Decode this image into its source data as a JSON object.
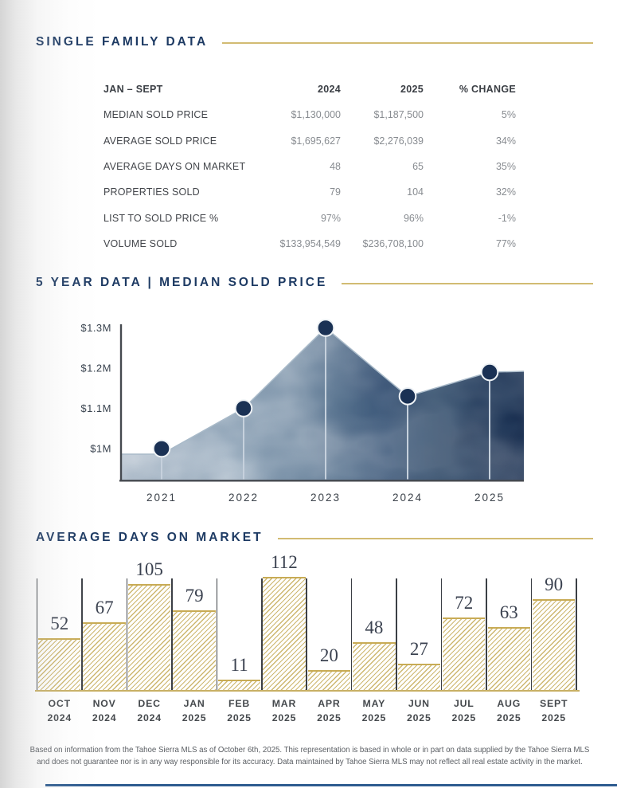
{
  "report": {
    "sections": [
      {
        "id": "single_family",
        "title": "SINGLE FAMILY DATA"
      },
      {
        "id": "five_year",
        "title": "5 YEAR DATA | MEDIAN SOLD PRICE"
      },
      {
        "id": "days_on_market",
        "title": "AVERAGE DAYS ON MARKET"
      }
    ],
    "footer_disclaimer": "Based on information from the Tahoe Sierra MLS as of October 6th, 2025. This representation is based in whole or in part on data supplied by the Tahoe Sierra MLS and does not guarantee nor is in any way responsible for its accuracy. Data maintained by Tahoe Sierra MLS may not reflect all real estate activity in the market."
  },
  "chart_data": [
    {
      "type": "table",
      "title": "SINGLE FAMILY DATA",
      "period": "JAN – SEPT",
      "columns": [
        "JAN – SEPT",
        "2024",
        "2025",
        "% CHANGE"
      ],
      "rows": [
        [
          "MEDIAN SOLD PRICE",
          "$1,130,000",
          "$1,187,500",
          "5%"
        ],
        [
          "AVERAGE SOLD PRICE",
          "$1,695,627",
          "$2,276,039",
          "34%"
        ],
        [
          "AVERAGE DAYS ON MARKET",
          "48",
          "65",
          "35%"
        ],
        [
          "PROPERTIES SOLD",
          "79",
          "104",
          "32%"
        ],
        [
          "LIST TO SOLD PRICE %",
          "97%",
          "96%",
          "-1%"
        ],
        [
          "VOLUME SOLD",
          "$133,954,549",
          "$236,708,100",
          "77%"
        ]
      ]
    },
    {
      "type": "area",
      "title": "5 YEAR DATA | MEDIAN SOLD PRICE",
      "x": [
        "2021",
        "2022",
        "2023",
        "2024",
        "2025"
      ],
      "values_musd": [
        1.0,
        1.1,
        1.3,
        1.13,
        1.19
      ],
      "y_ticks": [
        {
          "label": "$1M",
          "value": 1.0
        },
        {
          "label": "$1.1M",
          "value": 1.1
        },
        {
          "label": "$1.2M",
          "value": 1.2
        },
        {
          "label": "$1.3M",
          "value": 1.3
        }
      ],
      "ylim": [
        0.93,
        1.33
      ],
      "grid": false,
      "legend": false,
      "style": "navy watercolor gradient area, dark navy point markers with white rings, light vertical drop lines"
    },
    {
      "type": "bar",
      "title": "AVERAGE DAYS ON MARKET",
      "categories": [
        "OCT 2024",
        "NOV 2024",
        "DEC 2024",
        "JAN 2025",
        "FEB 2025",
        "MAR 2025",
        "APR 2025",
        "MAY 2025",
        "JUN 2025",
        "JUL 2025",
        "AUG 2025",
        "SEPT 2025"
      ],
      "values": [
        52,
        67,
        105,
        79,
        11,
        112,
        20,
        48,
        27,
        72,
        63,
        90
      ],
      "ylim": [
        0,
        112
      ],
      "grid": false,
      "legend": false,
      "value_labels": true,
      "style": "gold diagonal-hatch bars inside open columns bounded by dark vertical guide lines, gold baseline"
    }
  ],
  "colors": {
    "navy_heading": "#1d3a63",
    "gold_rule": "#d2bb72",
    "bar_hatch_gold": "#cdb76f",
    "bar_guide_line": "#3b3f45",
    "marker_navy": "#1a3154",
    "area_dark": "#16294a",
    "area_light": "#cdd5de",
    "table_label": "#43464b",
    "table_value": "#888c91",
    "footer_text": "#5a5e63",
    "bottom_rule_navy": "#2e5c90"
  }
}
